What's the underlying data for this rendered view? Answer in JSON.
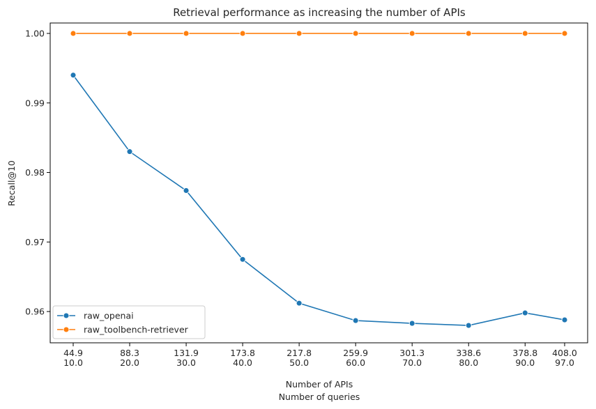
{
  "chart_data": {
    "type": "line",
    "title": "Retrieval performance as increasing the number of APIs",
    "xlabel": "Number of APIs",
    "xlabel2": "Number of queries",
    "ylabel": "Recall@10",
    "x_tick_labels_top": [
      "44.9",
      "88.3",
      "131.9",
      "173.8",
      "217.8",
      "259.9",
      "301.3",
      "338.6",
      "378.8",
      "408.0"
    ],
    "x_tick_labels_bottom": [
      "10.0",
      "20.0",
      "30.0",
      "40.0",
      "50.0",
      "60.0",
      "70.0",
      "80.0",
      "90.0",
      "97.0"
    ],
    "x": [
      10,
      20,
      30,
      40,
      50,
      60,
      70,
      80,
      90,
      97
    ],
    "ylim": [
      0.9555,
      1.0015
    ],
    "yticks": [
      "0.96",
      "0.97",
      "0.98",
      "0.99",
      "1.00"
    ],
    "ytick_values": [
      0.96,
      0.97,
      0.98,
      0.99,
      1.0
    ],
    "grid": false,
    "legend_position": "lower-left",
    "series": [
      {
        "name": "raw_openai",
        "color": "#1f77b4",
        "values": [
          0.994,
          0.983,
          0.9774,
          0.9675,
          0.9612,
          0.9587,
          0.9583,
          0.958,
          0.9598,
          0.9588
        ]
      },
      {
        "name": "raw_toolbench-retriever",
        "color": "#ff7f0e",
        "values": [
          1.0,
          1.0,
          1.0,
          1.0,
          1.0,
          1.0,
          1.0,
          1.0,
          1.0,
          1.0
        ]
      }
    ]
  }
}
